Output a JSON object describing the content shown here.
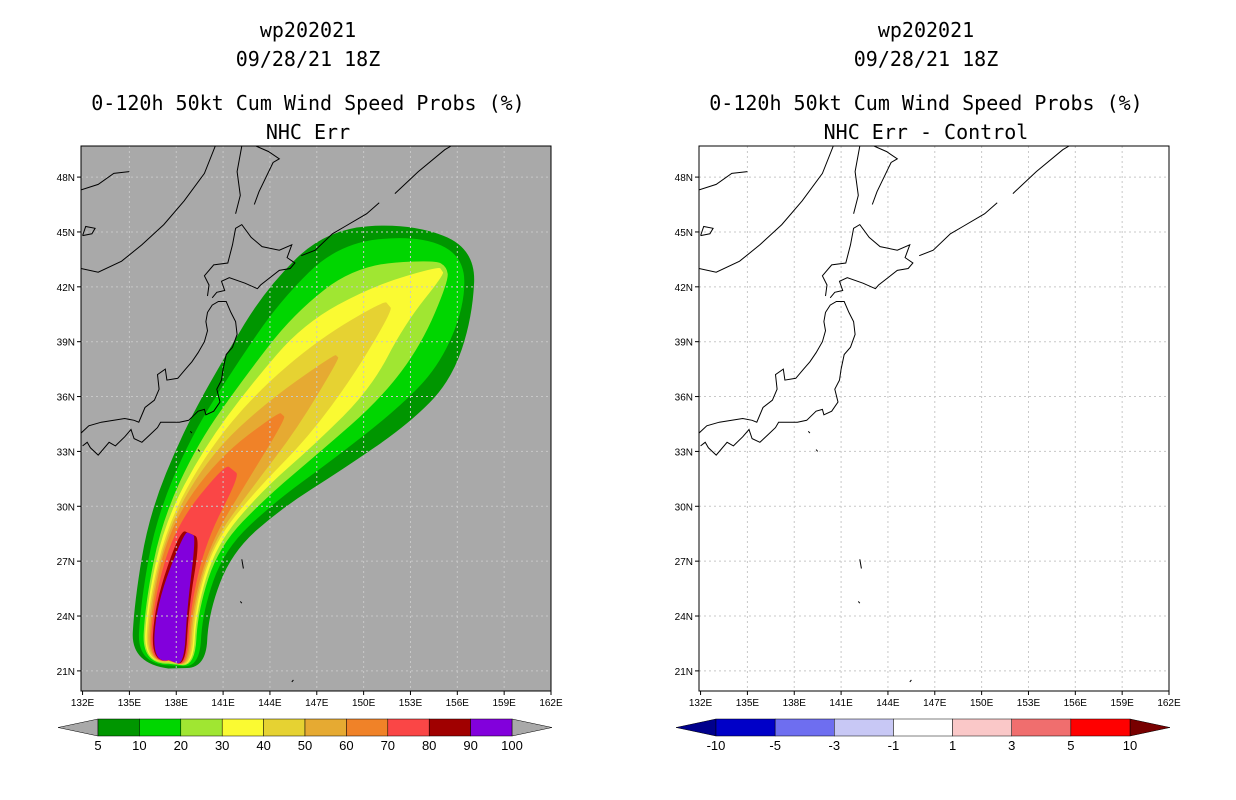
{
  "left_panel": {
    "title_lines": [
      "wp202021",
      "09/28/21 18Z",
      "0-120h 50kt Cum Wind Speed Probs (%)",
      "NHC Err"
    ],
    "background": "#a9a9a9",
    "colorbar": {
      "colors": [
        "#009600",
        "#00d600",
        "#a0e632",
        "#fafa32",
        "#e6d232",
        "#e6aa32",
        "#f08228",
        "#fa4646",
        "#a00000",
        "#8200dc"
      ],
      "labels": [
        "5",
        "10",
        "20",
        "30",
        "40",
        "50",
        "60",
        "70",
        "80",
        "90",
        "100"
      ],
      "end_color": "#a9a9a9"
    }
  },
  "right_panel": {
    "title_lines": [
      "wp202021",
      "09/28/21 18Z",
      "0-120h 50kt Cum Wind Speed Probs (%)",
      "NHC Err - Control"
    ],
    "background": "#ffffff",
    "colorbar": {
      "colors": [
        "#0000c8",
        "#6e6ef0",
        "#c8c8f5",
        "#ffffff",
        "#fac8c8",
        "#f06e6e",
        "#ff0000"
      ],
      "labels": [
        "-10",
        "-5",
        "-3",
        "-1",
        "1",
        "3",
        "5",
        "10"
      ],
      "low_end_color": "#00008c",
      "high_end_color": "#780000"
    }
  },
  "map": {
    "lon_labels": [
      "132E",
      "135E",
      "138E",
      "141E",
      "144E",
      "147E",
      "150E",
      "153E",
      "156E",
      "159E",
      "162E"
    ],
    "lat_labels": [
      "48N",
      "45N",
      "42N",
      "39N",
      "36N",
      "33N",
      "30N",
      "27N",
      "24N",
      "21N"
    ],
    "lon_range": [
      131.9,
      162.0
    ],
    "lat_range": [
      19.9,
      49.7
    ],
    "lon_ticks": [
      132,
      135,
      138,
      141,
      144,
      147,
      150,
      153,
      156,
      159,
      162
    ],
    "lat_ticks": [
      48,
      45,
      42,
      39,
      36,
      33,
      30,
      27,
      24,
      21
    ]
  },
  "prob_swath": {
    "track": [
      [
        137.5,
        21.3
      ],
      [
        137.7,
        24.5
      ],
      [
        138.9,
        28.5
      ],
      [
        141.6,
        32.0
      ],
      [
        144.8,
        35.0
      ],
      [
        148.3,
        38.2
      ],
      [
        151.6,
        41.0
      ],
      [
        155.0,
        42.9
      ]
    ],
    "levels": [
      {
        "value": 5,
        "color": "#009600",
        "halfwidth": [
          2.4,
          2.4,
          2.9,
          4.0,
          5.2,
          6.3,
          6.3,
          3.6
        ],
        "start_ext": 0.2,
        "end_ext": 2.6
      },
      {
        "value": 10,
        "color": "#00d600",
        "halfwidth": [
          2.0,
          2.0,
          2.4,
          3.4,
          4.3,
          5.1,
          5.1,
          2.7
        ],
        "start_ext": 0.0,
        "end_ext": 1.7
      },
      {
        "value": 20,
        "color": "#a0e632",
        "halfwidth": [
          1.7,
          1.7,
          2.0,
          2.8,
          3.4,
          3.9,
          3.3,
          0.8
        ],
        "start_ext": -0.1,
        "end_ext": 0.4
      },
      {
        "value": 30,
        "color": "#fafa32",
        "halfwidth": [
          1.6,
          1.6,
          1.8,
          2.3,
          2.8,
          3.0,
          1.6,
          0.3
        ],
        "start_ext": -0.2,
        "end_ext": 0.0
      },
      {
        "value": 40,
        "color": "#e6d232",
        "halfwidth": [
          1.5,
          1.5,
          1.6,
          2.0,
          2.2,
          1.6,
          0.4,
          0.0
        ],
        "start_ext": -0.2,
        "end_ext": 0.0
      },
      {
        "value": 50,
        "color": "#e6aa32",
        "halfwidth": [
          1.4,
          1.4,
          1.5,
          1.7,
          1.3,
          0.2,
          0.0,
          0.0
        ],
        "start_ext": -0.3,
        "end_ext": 0.0
      },
      {
        "value": 60,
        "color": "#f08228",
        "halfwidth": [
          1.3,
          1.3,
          1.4,
          1.2,
          0.3,
          0.0,
          0.0,
          0.0
        ],
        "start_ext": -0.3,
        "end_ext": 0.0
      },
      {
        "value": 70,
        "color": "#fa4646",
        "halfwidth": [
          1.2,
          1.2,
          1.1,
          0.6,
          0.0,
          0.0,
          0.0,
          0.0
        ],
        "start_ext": -0.3,
        "end_ext": 0.0
      },
      {
        "value": 80,
        "color": "#a00000",
        "halfwidth": [
          1.1,
          1.1,
          0.7,
          0.0,
          0.0,
          0.0,
          0.0,
          0.0
        ],
        "start_ext": -0.35,
        "end_ext": 0.0
      },
      {
        "value": 90,
        "color": "#8200dc",
        "halfwidth": [
          1.0,
          1.0,
          0.4,
          0.0,
          0.0,
          0.0,
          0.0,
          0.0
        ],
        "start_ext": -0.35,
        "end_ext": 0.0
      }
    ]
  },
  "coastlines": [
    [
      [
        131.9,
        34.0
      ],
      [
        132.4,
        34.4
      ],
      [
        133.2,
        34.6
      ],
      [
        134.0,
        34.7
      ],
      [
        134.7,
        34.8
      ],
      [
        135.3,
        34.7
      ],
      [
        135.6,
        34.6
      ],
      [
        136.0,
        35.4
      ],
      [
        136.6,
        35.8
      ],
      [
        136.9,
        36.4
      ],
      [
        136.8,
        37.2
      ],
      [
        137.3,
        37.5
      ],
      [
        137.4,
        36.9
      ],
      [
        138.1,
        37.0
      ],
      [
        138.6,
        37.5
      ],
      [
        139.0,
        37.9
      ],
      [
        139.4,
        38.4
      ],
      [
        139.8,
        39.0
      ],
      [
        140.0,
        39.6
      ],
      [
        139.9,
        40.1
      ],
      [
        140.0,
        40.6
      ],
      [
        140.3,
        41.0
      ],
      [
        140.7,
        41.2
      ],
      [
        141.2,
        41.2
      ],
      [
        141.5,
        40.6
      ],
      [
        141.8,
        40.1
      ],
      [
        141.9,
        39.4
      ],
      [
        141.6,
        38.7
      ],
      [
        141.2,
        38.3
      ],
      [
        141.0,
        37.5
      ],
      [
        140.9,
        36.9
      ],
      [
        140.6,
        36.4
      ],
      [
        140.8,
        35.7
      ],
      [
        140.4,
        35.2
      ],
      [
        139.9,
        35.0
      ],
      [
        139.8,
        35.3
      ],
      [
        139.4,
        35.2
      ],
      [
        138.8,
        34.7
      ],
      [
        138.2,
        34.6
      ],
      [
        137.0,
        34.6
      ],
      [
        136.8,
        34.3
      ],
      [
        136.3,
        33.9
      ],
      [
        135.8,
        33.5
      ],
      [
        135.3,
        33.7
      ],
      [
        135.1,
        34.2
      ],
      [
        134.7,
        33.8
      ],
      [
        134.1,
        33.3
      ],
      [
        133.7,
        33.5
      ],
      [
        133.0,
        32.8
      ],
      [
        132.5,
        33.2
      ],
      [
        132.3,
        33.5
      ],
      [
        132.0,
        33.3
      ]
    ],
    [
      [
        140.0,
        41.5
      ],
      [
        140.1,
        42.1
      ],
      [
        139.8,
        42.6
      ],
      [
        140.4,
        43.2
      ],
      [
        141.3,
        43.3
      ],
      [
        141.6,
        44.3
      ],
      [
        141.8,
        45.2
      ],
      [
        142.2,
        45.4
      ],
      [
        142.8,
        44.7
      ],
      [
        143.5,
        44.2
      ],
      [
        144.6,
        44.0
      ],
      [
        145.4,
        44.3
      ],
      [
        145.1,
        43.6
      ],
      [
        145.6,
        43.3
      ],
      [
        145.3,
        43.0
      ],
      [
        144.6,
        42.9
      ],
      [
        143.4,
        42.1
      ],
      [
        143.2,
        41.9
      ],
      [
        142.4,
        42.2
      ],
      [
        141.4,
        42.5
      ],
      [
        140.9,
        42.3
      ],
      [
        141.1,
        41.8
      ],
      [
        140.6,
        41.7
      ],
      [
        140.3,
        41.4
      ]
    ],
    [
      [
        131.9,
        43.0
      ],
      [
        133.0,
        42.8
      ],
      [
        134.5,
        43.4
      ],
      [
        135.8,
        44.3
      ],
      [
        137.2,
        45.4
      ],
      [
        138.5,
        46.7
      ],
      [
        139.8,
        48.2
      ],
      [
        140.5,
        49.7
      ]
    ],
    [
      [
        141.8,
        46.0
      ],
      [
        142.1,
        47.0
      ],
      [
        141.9,
        48.3
      ],
      [
        142.2,
        49.7
      ]
    ],
    [
      [
        143.0,
        46.5
      ],
      [
        143.3,
        47.2
      ],
      [
        144.2,
        48.8
      ],
      [
        144.6,
        49.0
      ],
      [
        143.9,
        49.4
      ],
      [
        143.1,
        49.7
      ]
    ],
    [
      [
        146.0,
        43.7
      ],
      [
        146.9,
        44.0
      ],
      [
        148.0,
        44.9
      ],
      [
        148.8,
        45.3
      ],
      [
        150.2,
        46.0
      ],
      [
        151.0,
        46.6
      ]
    ],
    [
      [
        152.0,
        47.1
      ],
      [
        153.5,
        48.3
      ],
      [
        155.2,
        49.5
      ],
      [
        155.6,
        49.7
      ]
    ],
    [
      [
        131.9,
        47.3
      ],
      [
        133.0,
        47.6
      ],
      [
        134.0,
        48.2
      ],
      [
        135.0,
        48.3
      ]
    ],
    [
      [
        132.0,
        44.8
      ],
      [
        132.6,
        44.9
      ],
      [
        132.8,
        45.2
      ],
      [
        132.2,
        45.3
      ],
      [
        132.0,
        44.8
      ]
    ],
    [
      [
        142.2,
        27.1
      ],
      [
        142.3,
        26.6
      ]
    ],
    [
      [
        142.1,
        24.8
      ],
      [
        142.2,
        24.7
      ]
    ],
    [
      [
        145.4,
        20.4
      ],
      [
        145.5,
        20.5
      ]
    ],
    [
      [
        138.9,
        34.1
      ],
      [
        139.0,
        34.0
      ]
    ],
    [
      [
        139.4,
        33.1
      ],
      [
        139.5,
        33.0
      ]
    ]
  ]
}
